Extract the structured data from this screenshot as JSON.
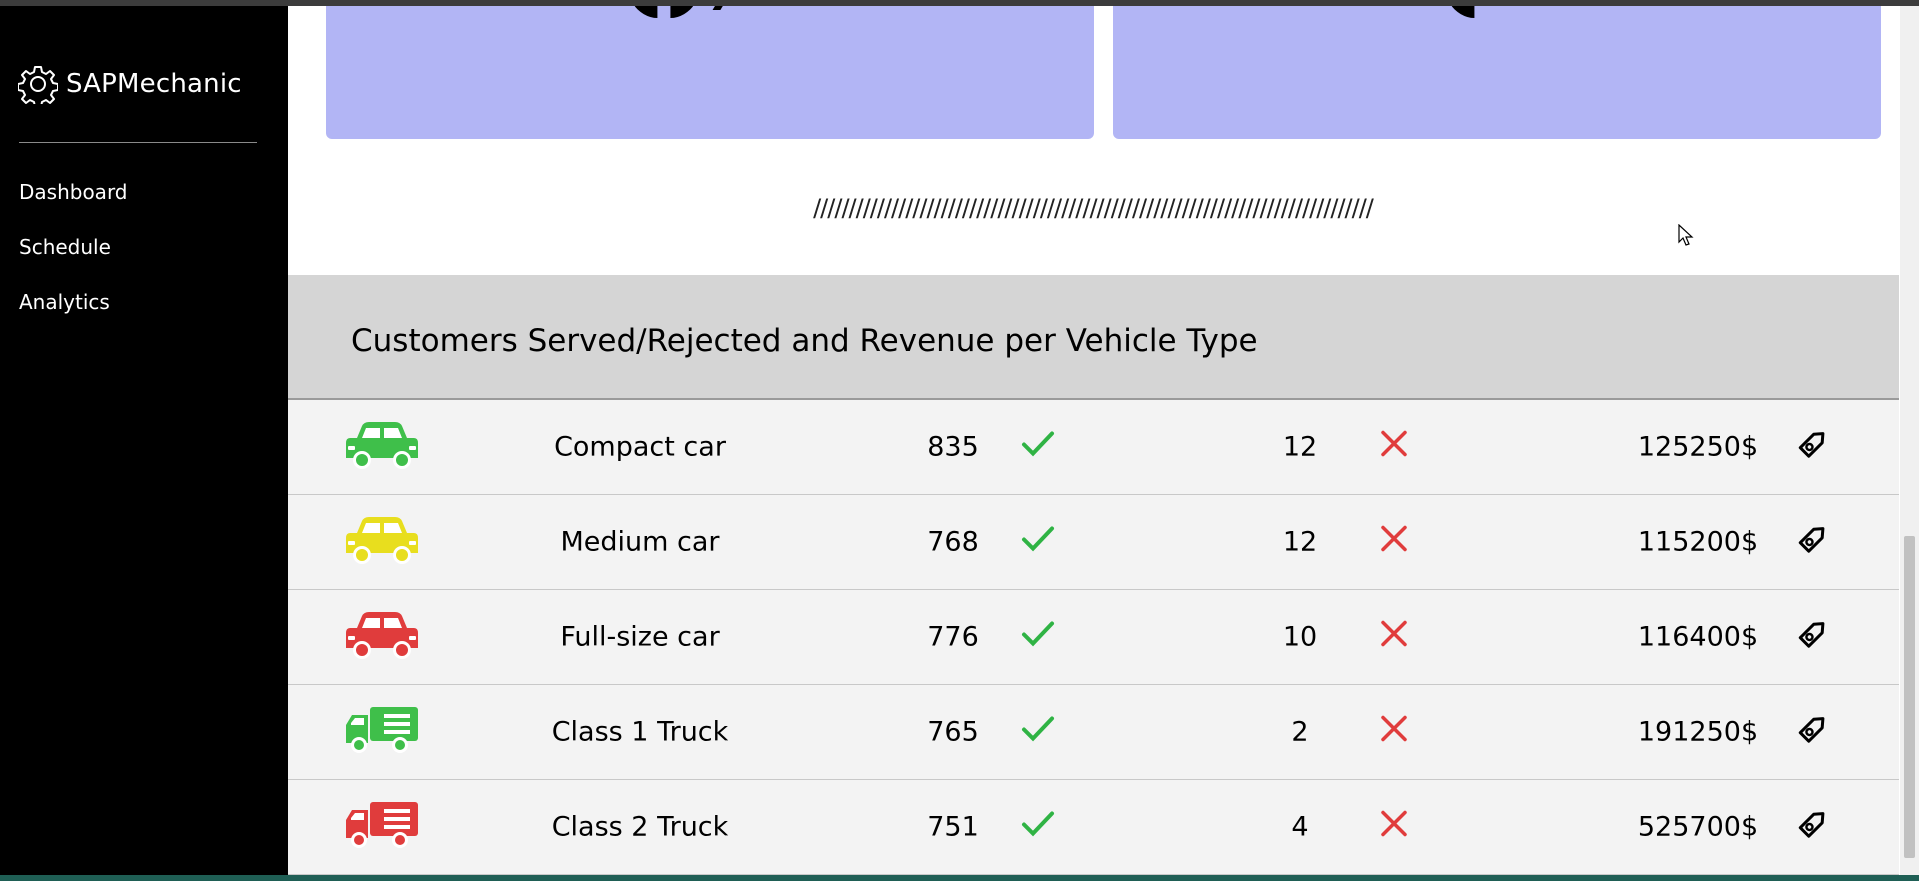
{
  "app": {
    "name": "SAPMechanic"
  },
  "sidebar": {
    "items": [
      {
        "label": "Dashboard"
      },
      {
        "label": "Schedule"
      },
      {
        "label": "Analytics"
      }
    ]
  },
  "decor": {
    "slashes": "///////////////////////////////////////////////////////////////////////////////"
  },
  "table": {
    "title": "Customers Served/Rejected and Revenue per Vehicle Type",
    "rows": [
      {
        "vehicle": "Compact car",
        "served": "835",
        "rejected": "12",
        "revenue": "125250$",
        "icon": "car-icon",
        "color": "#3fbf4a"
      },
      {
        "vehicle": "Medium car",
        "served": "768",
        "rejected": "12",
        "revenue": "115200$",
        "icon": "car-icon",
        "color": "#e8de1e"
      },
      {
        "vehicle": "Full-size car",
        "served": "776",
        "rejected": "10",
        "revenue": "116400$",
        "icon": "car-icon",
        "color": "#e03c3c"
      },
      {
        "vehicle": "Class 1 Truck",
        "served": "765",
        "rejected": "2",
        "revenue": "191250$",
        "icon": "truck-icon",
        "color": "#3fbf4a"
      },
      {
        "vehicle": "Class 2 Truck",
        "served": "751",
        "rejected": "4",
        "revenue": "525700$",
        "icon": "truck-icon",
        "color": "#e03c3c"
      }
    ]
  },
  "colors": {
    "check": "#2fb344",
    "cross": "#e03c3c",
    "card": "#b2b5f5"
  }
}
